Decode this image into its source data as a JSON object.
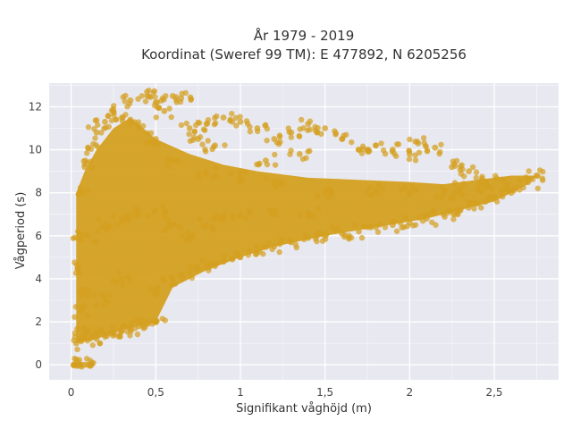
{
  "chart_data": {
    "type": "scatter",
    "title_line1": "År 1979 - 2019",
    "title_line2": "Koordinat (Sweref 99 TM): E 477892, N 6205256",
    "xlabel": "Signifikant våghöjd (m)",
    "ylabel": "Vågperiod (s)",
    "xlim": [
      -0.13,
      2.88
    ],
    "ylim": [
      -0.7,
      13.1
    ],
    "x_ticks": [
      0,
      0.5,
      1,
      1.5,
      2,
      2.5
    ],
    "x_tick_labels": [
      "0",
      "0,5",
      "1",
      "1,5",
      "2",
      "2,5"
    ],
    "y_ticks": [
      0,
      2,
      4,
      6,
      8,
      10,
      12
    ],
    "y_tick_labels": [
      "0",
      "2",
      "4",
      "6",
      "8",
      "10",
      "12"
    ],
    "grid": true,
    "marker_color": "#D4A020",
    "marker_opacity": 0.75,
    "plot_background": "#E8E8F0",
    "series": [
      {
        "values": [
          [
            0.02,
            0.0
          ],
          [
            0.04,
            0.0
          ],
          [
            0.06,
            0.0
          ],
          [
            0.08,
            0.0
          ],
          [
            0.1,
            0.0
          ],
          [
            0.12,
            0.0
          ],
          [
            0.03,
            1.0
          ],
          [
            0.05,
            1.2
          ],
          [
            0.08,
            1.5
          ],
          [
            0.06,
            2.5
          ],
          [
            0.1,
            3.5
          ],
          [
            0.04,
            4.5
          ],
          [
            0.05,
            6.0
          ],
          [
            0.05,
            8.0
          ],
          [
            0.08,
            9.2
          ],
          [
            0.1,
            10.1
          ],
          [
            0.15,
            1.2
          ],
          [
            0.2,
            1.4
          ],
          [
            0.25,
            1.5
          ],
          [
            0.3,
            1.6
          ],
          [
            0.35,
            1.7
          ],
          [
            0.4,
            1.8
          ],
          [
            0.45,
            1.9
          ],
          [
            0.5,
            2.0
          ],
          [
            0.2,
            3.0
          ],
          [
            0.3,
            4.0
          ],
          [
            0.5,
            3.5
          ],
          [
            0.6,
            4.0
          ],
          [
            0.7,
            4.3
          ],
          [
            0.8,
            4.6
          ],
          [
            0.9,
            4.8
          ],
          [
            1.0,
            5.0
          ],
          [
            1.1,
            5.3
          ],
          [
            1.2,
            5.5
          ],
          [
            1.3,
            5.7
          ],
          [
            1.4,
            5.9
          ],
          [
            1.5,
            6.0
          ],
          [
            1.6,
            6.1
          ],
          [
            1.7,
            6.2
          ],
          [
            1.8,
            6.4
          ],
          [
            1.9,
            6.5
          ],
          [
            2.0,
            6.6
          ],
          [
            2.1,
            6.8
          ],
          [
            2.2,
            7.0
          ],
          [
            2.3,
            7.2
          ],
          [
            2.4,
            7.5
          ],
          [
            2.5,
            7.8
          ],
          [
            2.6,
            8.0
          ],
          [
            2.7,
            8.5
          ],
          [
            2.75,
            8.8
          ],
          [
            2.55,
            8.6
          ],
          [
            2.45,
            8.3
          ],
          [
            2.3,
            8.2
          ],
          [
            2.2,
            8.0
          ],
          [
            2.0,
            8.0
          ],
          [
            1.8,
            8.1
          ],
          [
            1.5,
            8.0
          ],
          [
            1.2,
            8.5
          ],
          [
            1.0,
            8.7
          ],
          [
            0.8,
            9.0
          ],
          [
            0.6,
            9.5
          ],
          [
            0.5,
            10.5
          ],
          [
            0.4,
            11.0
          ],
          [
            0.3,
            11.5
          ],
          [
            0.25,
            11.8
          ],
          [
            0.2,
            11.3
          ],
          [
            0.15,
            10.8
          ],
          [
            0.35,
            12.3
          ],
          [
            0.45,
            12.5
          ],
          [
            0.5,
            12.2
          ],
          [
            0.6,
            12.5
          ],
          [
            0.65,
            12.4
          ],
          [
            0.55,
            11.8
          ],
          [
            0.7,
            11.0
          ],
          [
            0.8,
            11.2
          ],
          [
            0.9,
            11.5
          ],
          [
            1.0,
            11.3
          ],
          [
            1.1,
            11.0
          ],
          [
            1.2,
            10.5
          ],
          [
            1.3,
            10.8
          ],
          [
            1.4,
            11.2
          ],
          [
            1.5,
            11.0
          ],
          [
            1.6,
            10.5
          ],
          [
            1.7,
            10.0
          ],
          [
            1.8,
            10.2
          ],
          [
            1.9,
            10.0
          ],
          [
            2.0,
            9.8
          ],
          [
            2.05,
            10.3
          ],
          [
            2.15,
            10.1
          ],
          [
            2.25,
            9.2
          ],
          [
            2.35,
            9.0
          ],
          [
            2.45,
            8.5
          ],
          [
            0.85,
            10.2
          ],
          [
            0.75,
            10.5
          ],
          [
            1.15,
            9.5
          ],
          [
            1.35,
            9.8
          ],
          [
            0.1,
            6.0
          ],
          [
            0.2,
            6.5
          ],
          [
            0.3,
            6.8
          ],
          [
            0.4,
            7.0
          ],
          [
            0.5,
            7.2
          ],
          [
            0.6,
            6.5
          ],
          [
            0.7,
            6.0
          ],
          [
            0.8,
            6.5
          ],
          [
            0.9,
            6.8
          ],
          [
            1.0,
            7.0
          ],
          [
            1.2,
            7.2
          ],
          [
            1.4,
            7.0
          ]
        ]
      }
    ]
  }
}
